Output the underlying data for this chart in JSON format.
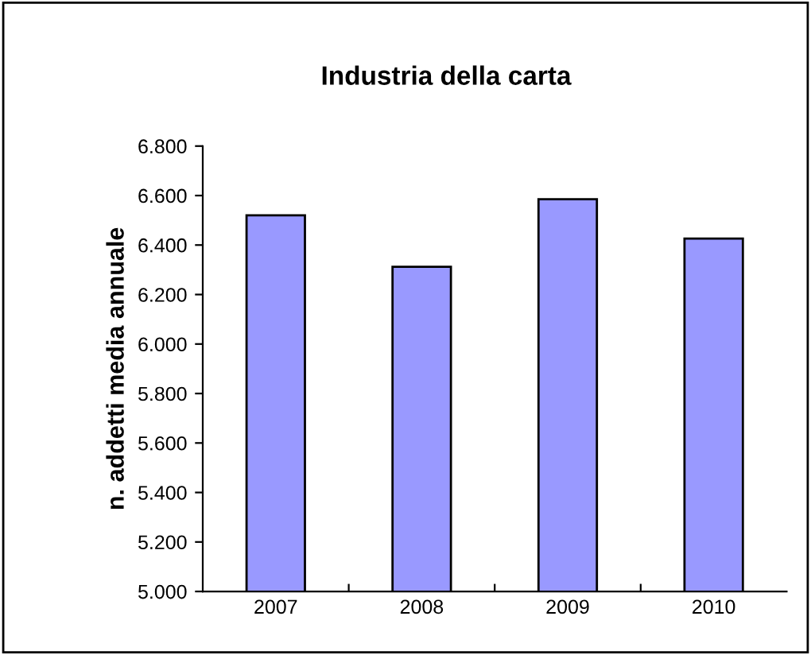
{
  "chart_data": {
    "type": "bar",
    "title": "Industria della carta",
    "ylabel": "n. addetti media annuale",
    "categories": [
      "2007",
      "2008",
      "2009",
      "2010"
    ],
    "values": [
      6520,
      6312,
      6585,
      6426
    ],
    "color": "#9999ff",
    "ylim": [
      5000,
      6800
    ],
    "yticks": [
      {
        "value": 5000,
        "label": "5.000"
      },
      {
        "value": 5200,
        "label": "5.200"
      },
      {
        "value": 5400,
        "label": "5.400"
      },
      {
        "value": 5600,
        "label": "5.600"
      },
      {
        "value": 5800,
        "label": "5.800"
      },
      {
        "value": 6000,
        "label": "6.000"
      },
      {
        "value": 6200,
        "label": "6.200"
      },
      {
        "value": 6400,
        "label": "6.400"
      },
      {
        "value": 6600,
        "label": "6.600"
      },
      {
        "value": 6800,
        "label": "6.800"
      }
    ],
    "grid": false,
    "legend": false
  }
}
